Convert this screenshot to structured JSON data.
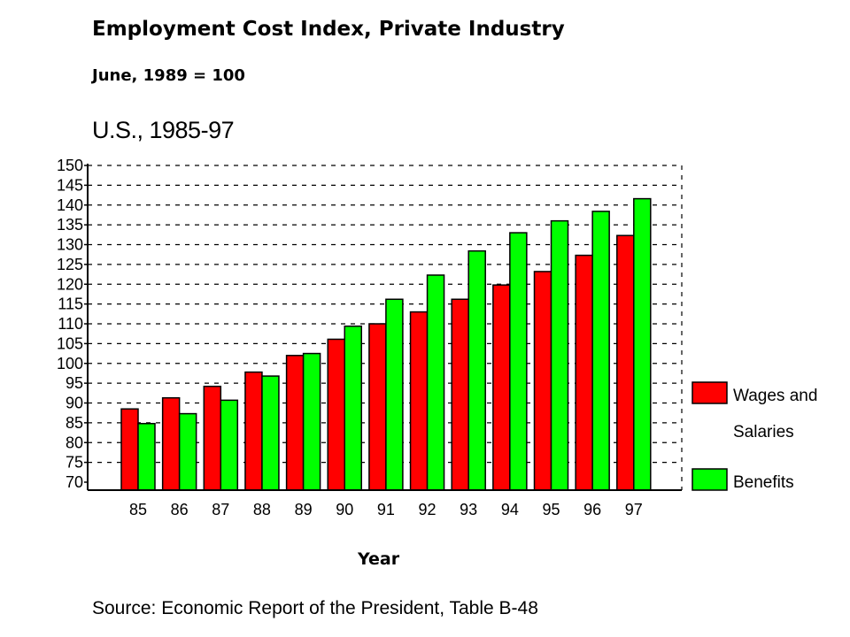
{
  "chart_data": {
    "type": "bar",
    "title": "Employment Cost Index, Private Industry",
    "subtitle": "June, 1989 = 100",
    "region": "U.S., 1985-97",
    "xlabel": "Year",
    "ylabel": "",
    "source": "Source: Economic Report of the President, Table B-48",
    "categories": [
      "85",
      "86",
      "87",
      "88",
      "89",
      "90",
      "91",
      "92",
      "93",
      "94",
      "95",
      "96",
      "97"
    ],
    "ylim": [
      70,
      150
    ],
    "yticks": [
      "150",
      "145",
      "140",
      "135",
      "130",
      "125",
      "120",
      "115",
      "110",
      "105",
      "100",
      "95",
      "90",
      "85",
      "80",
      "75",
      "70"
    ],
    "grid": true,
    "legend_position": "right",
    "series": [
      {
        "name": "Wages and Salaries",
        "legend_lines": [
          "Wages and",
          "Salaries"
        ],
        "color": "#ff0000",
        "values": [
          88.5,
          91.3,
          94.2,
          97.8,
          102.0,
          106.1,
          110.0,
          113.0,
          116.2,
          119.8,
          123.2,
          127.3,
          132.3
        ]
      },
      {
        "name": "Benefits",
        "legend_lines": [
          "Benefits"
        ],
        "color": "#00ff00",
        "values": [
          84.8,
          87.3,
          90.7,
          96.8,
          102.5,
          109.4,
          116.2,
          122.3,
          128.4,
          133.0,
          136.0,
          138.4,
          141.6
        ]
      }
    ]
  }
}
